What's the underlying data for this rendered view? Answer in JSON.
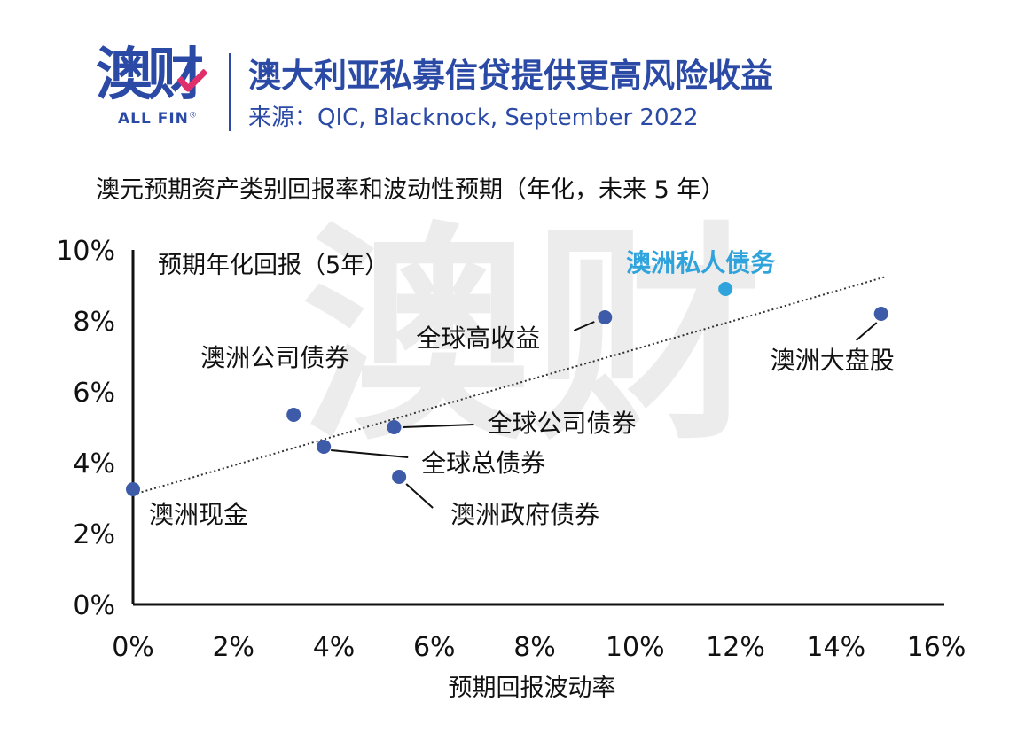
{
  "header": {
    "logo_cn": "澳财",
    "logo_en": "ALL FIN",
    "logo_reg": "®",
    "title": "澳大利亚私募信贷提供更高风险收益",
    "source": "来源：QIC, Blacknock, September 2022"
  },
  "chart_data": {
    "type": "scatter",
    "title": "澳元预期资产类别回报率和波动性预期（年化，未来 5 年）",
    "xlabel": "预期回报波动率",
    "ylabel": "预期年化回报（5年）",
    "xlim": [
      0,
      16
    ],
    "ylim": [
      0,
      10
    ],
    "x_ticks": [
      "0%",
      "2%",
      "4%",
      "6%",
      "8%",
      "10%",
      "12%",
      "14%",
      "16%"
    ],
    "y_ticks": [
      "0%",
      "2%",
      "4%",
      "6%",
      "8%",
      "10%"
    ],
    "points": [
      {
        "label": "澳洲现金",
        "x": 0.0,
        "y": 3.25,
        "color": "#3e5ba9"
      },
      {
        "label": "澳洲公司债券",
        "x": 3.2,
        "y": 5.35,
        "color": "#3e5ba9"
      },
      {
        "label": "全球总债券",
        "x": 3.8,
        "y": 4.45,
        "color": "#3e5ba9"
      },
      {
        "label": "全球公司债券",
        "x": 5.2,
        "y": 5.0,
        "color": "#3e5ba9"
      },
      {
        "label": "澳洲政府债券",
        "x": 5.3,
        "y": 3.6,
        "color": "#3e5ba9"
      },
      {
        "label": "全球高收益",
        "x": 9.4,
        "y": 8.1,
        "color": "#3e5ba9"
      },
      {
        "label": "澳洲私人债务",
        "x": 11.8,
        "y": 8.9,
        "color": "#2fa3dc"
      },
      {
        "label": "澳洲大盘股",
        "x": 14.9,
        "y": 8.2,
        "color": "#3e5ba9"
      }
    ],
    "trendline": {
      "x": [
        0,
        15
      ],
      "y": [
        3.1,
        9.25
      ],
      "style": "dotted"
    },
    "highlight_color": "#2fa3dc",
    "point_color": "#3e5ba9"
  }
}
